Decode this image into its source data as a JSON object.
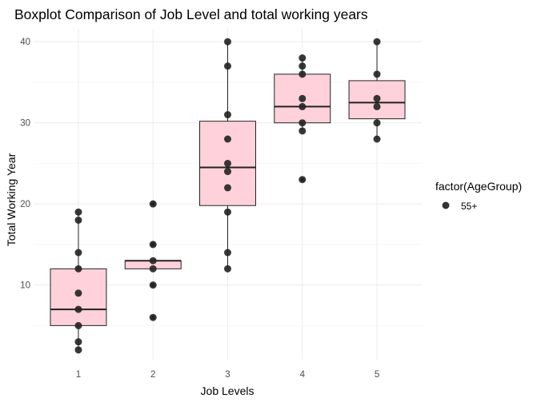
{
  "chart_data": {
    "type": "boxplot",
    "title": "Boxplot Comparison of Job Level and total working years",
    "xlabel": "Job Levels",
    "ylabel": "Total Working Year",
    "categories": [
      "1",
      "2",
      "3",
      "4",
      "5"
    ],
    "ylim": [
      0.8,
      41.6
    ],
    "yticks": [
      10,
      20,
      30,
      40
    ],
    "grid": true,
    "legend": {
      "title": "factor(AgeGroup)",
      "position": "right",
      "entries": [
        {
          "label": "55+",
          "color": "#222222"
        }
      ]
    },
    "box_fill": "#ffd1da",
    "point_color": "#222222",
    "boxes": [
      {
        "category": "1",
        "min": 2,
        "q1": 5,
        "median": 7,
        "q3": 12,
        "max": 19
      },
      {
        "category": "2",
        "min": 12,
        "q1": 12,
        "median": 13,
        "q3": 13,
        "max": 13
      },
      {
        "category": "3",
        "min": 12,
        "q1": 19.8,
        "median": 24.5,
        "q3": 30.2,
        "max": 40
      },
      {
        "category": "4",
        "min": 29,
        "q1": 30,
        "median": 32,
        "q3": 36,
        "max": 38
      },
      {
        "category": "5",
        "min": 28,
        "q1": 30.5,
        "median": 32.5,
        "q3": 35.2,
        "max": 40
      }
    ],
    "outliers": [
      {
        "category": "2",
        "values": [
          6,
          10,
          15,
          20
        ]
      },
      {
        "category": "4",
        "values": [
          23
        ]
      }
    ],
    "points": [
      {
        "category": "1",
        "values": [
          19,
          18,
          14,
          12,
          9,
          7,
          5,
          3,
          2
        ]
      },
      {
        "category": "2",
        "values": [
          20,
          15,
          13,
          12,
          10,
          6
        ]
      },
      {
        "category": "3",
        "values": [
          40,
          37,
          31,
          28,
          25,
          24,
          22,
          19,
          14,
          12
        ]
      },
      {
        "category": "4",
        "values": [
          38,
          37,
          36,
          33,
          32,
          30,
          29,
          23
        ]
      },
      {
        "category": "5",
        "values": [
          40,
          36,
          33,
          32,
          30,
          28
        ]
      }
    ]
  }
}
